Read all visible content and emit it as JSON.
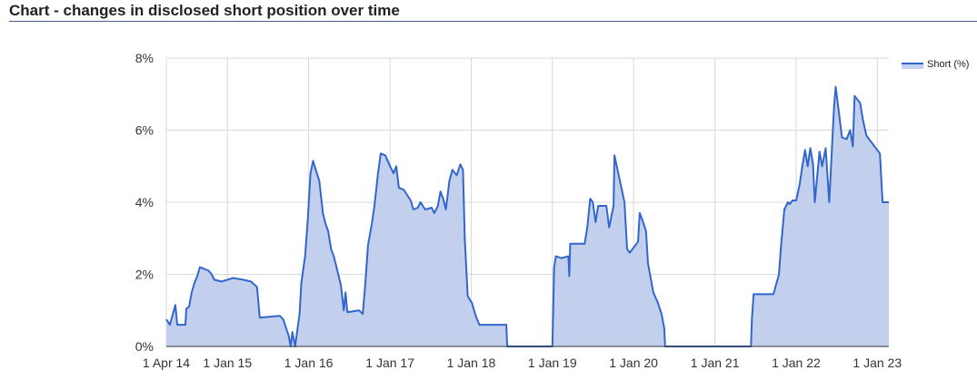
{
  "chart_data": {
    "type": "area",
    "title": "Chart - changes in disclosed short position over time",
    "x": [
      "2014-04-01",
      "2014-04-17",
      "2014-05-12",
      "2014-05-20",
      "2014-06-26",
      "2014-06-30",
      "2014-07-12",
      "2014-07-24",
      "2014-08-05",
      "2014-08-18",
      "2014-08-30",
      "2014-10-09",
      "2014-10-22",
      "2014-11-03",
      "2014-12-05",
      "2015-01-01",
      "2015-01-25",
      "2015-03-14",
      "2015-04-16",
      "2015-05-14",
      "2015-05-26",
      "2015-08-24",
      "2015-09-09",
      "2015-09-25",
      "2015-10-03",
      "2015-10-12",
      "2015-10-20",
      "2015-11-01",
      "2015-11-09",
      "2015-11-21",
      "2015-11-29",
      "2015-12-16",
      "2015-12-28",
      "2016-01-09",
      "2016-01-21",
      "2016-02-02",
      "2016-02-18",
      "2016-03-05",
      "2016-03-17",
      "2016-03-29",
      "2016-04-11",
      "2016-04-23",
      "2016-05-09",
      "2016-05-25",
      "2016-06-07",
      "2016-06-15",
      "2016-06-23",
      "2016-08-15",
      "2016-08-31",
      "2016-09-12",
      "2016-09-24",
      "2016-10-11",
      "2016-10-23",
      "2016-11-08",
      "2016-11-20",
      "2016-12-11",
      "2017-01-01",
      "2017-01-17",
      "2017-01-29",
      "2017-02-10",
      "2017-03-03",
      "2017-03-19",
      "2017-04-04",
      "2017-04-16",
      "2017-05-06",
      "2017-05-18",
      "2017-06-08",
      "2017-07-07",
      "2017-07-19",
      "2017-08-04",
      "2017-08-16",
      "2017-08-28",
      "2017-09-09",
      "2017-09-25",
      "2017-10-08",
      "2017-10-28",
      "2017-11-13",
      "2017-11-25",
      "2017-12-03",
      "2017-12-16",
      "2018-01-05",
      "2018-01-21",
      "2018-02-07",
      "2018-06-08",
      "2018-06-12",
      "2019-01-01",
      "2019-01-09",
      "2019-01-17",
      "2019-02-10",
      "2019-03-14",
      "2019-03-18",
      "2019-03-22",
      "2019-05-26",
      "2019-06-07",
      "2019-06-20",
      "2019-07-02",
      "2019-07-14",
      "2019-07-26",
      "2019-09-01",
      "2019-09-13",
      "2019-10-03",
      "2019-10-07",
      "2019-11-21",
      "2019-12-03",
      "2019-12-15",
      "2020-01-21",
      "2020-01-29",
      "2020-02-10",
      "2020-02-26",
      "2020-03-06",
      "2020-03-18",
      "2020-03-30",
      "2020-04-20",
      "2020-05-06",
      "2020-05-18",
      "2020-05-22",
      "2021-06-12",
      "2021-06-16",
      "2021-06-24",
      "2021-09-21",
      "2021-10-16",
      "2021-10-24",
      "2021-11-09",
      "2021-11-25",
      "2021-12-03",
      "2021-12-16",
      "2022-01-01",
      "2022-01-17",
      "2022-01-29",
      "2022-02-10",
      "2022-02-22",
      "2022-03-06",
      "2022-03-18",
      "2022-03-26",
      "2022-04-16",
      "2022-04-28",
      "2022-05-14",
      "2022-05-30",
      "2022-06-12",
      "2022-06-20",
      "2022-06-28",
      "2022-07-10",
      "2022-07-26",
      "2022-08-16",
      "2022-09-01",
      "2022-09-13",
      "2022-09-21",
      "2022-10-16",
      "2022-10-28",
      "2022-11-13",
      "2022-11-25",
      "2023-01-13",
      "2023-01-25",
      "2023-02-22"
    ],
    "series": [
      {
        "name": "Short (%)",
        "color": "#3366cc",
        "fill": "#c2d0ee",
        "values": [
          0.75,
          0.6,
          1.15,
          0.6,
          0.6,
          1.05,
          1.1,
          1.5,
          1.75,
          1.95,
          2.2,
          2.1,
          2.0,
          1.85,
          1.8,
          1.85,
          1.9,
          1.85,
          1.8,
          1.65,
          0.8,
          0.85,
          0.75,
          0.45,
          0.3,
          0.0,
          0.4,
          0.0,
          0.35,
          0.9,
          1.75,
          2.5,
          3.5,
          4.8,
          5.15,
          4.9,
          4.6,
          3.7,
          3.4,
          3.2,
          2.7,
          2.5,
          2.1,
          1.7,
          1.0,
          1.5,
          0.95,
          1.0,
          0.9,
          1.75,
          2.8,
          3.4,
          3.9,
          4.8,
          5.35,
          5.3,
          5.0,
          4.8,
          5.0,
          4.4,
          4.35,
          4.2,
          4.05,
          3.8,
          3.85,
          4.0,
          3.8,
          3.85,
          3.7,
          3.9,
          4.3,
          4.1,
          3.8,
          4.6,
          4.9,
          4.75,
          5.05,
          4.9,
          3.0,
          1.4,
          1.2,
          0.85,
          0.6,
          0.6,
          0.0,
          0.0,
          2.2,
          2.5,
          2.45,
          2.5,
          1.95,
          2.85,
          2.85,
          3.3,
          4.1,
          4.0,
          3.45,
          3.9,
          3.9,
          3.3,
          3.9,
          5.3,
          4.0,
          2.7,
          2.6,
          2.9,
          3.7,
          3.5,
          3.2,
          2.3,
          1.9,
          1.5,
          1.2,
          0.9,
          0.5,
          0.0,
          0.0,
          0.75,
          1.45,
          1.45,
          2.0,
          2.7,
          3.8,
          4.0,
          3.95,
          4.05,
          4.05,
          4.5,
          5.0,
          5.45,
          5.0,
          5.5,
          5.05,
          4.0,
          5.4,
          5.0,
          5.5,
          4.0,
          5.6,
          6.6,
          7.2,
          6.6,
          5.8,
          5.75,
          6.0,
          5.55,
          6.95,
          6.75,
          6.3,
          5.85,
          5.75,
          5.35,
          4.0,
          4.0
        ]
      }
    ],
    "xlim": [
      "2014-04-01",
      "2023-02-22"
    ],
    "xticks": [
      {
        "value": "2014-04-01",
        "label": "1 Apr 14"
      },
      {
        "value": "2015-01-01",
        "label": "1 Jan 15"
      },
      {
        "value": "2016-01-01",
        "label": "1 Jan 16"
      },
      {
        "value": "2017-01-01",
        "label": "1 Jan 17"
      },
      {
        "value": "2018-01-01",
        "label": "1 Jan 18"
      },
      {
        "value": "2019-01-01",
        "label": "1 Jan 19"
      },
      {
        "value": "2020-01-01",
        "label": "1 Jan 20"
      },
      {
        "value": "2021-01-01",
        "label": "1 Jan 21"
      },
      {
        "value": "2022-01-01",
        "label": "1 Jan 22"
      },
      {
        "value": "2023-01-01",
        "label": "1 Jan 23"
      }
    ],
    "ylim": [
      0,
      8
    ],
    "yticks": [
      {
        "value": 0,
        "label": "0%"
      },
      {
        "value": 2,
        "label": "2%"
      },
      {
        "value": 4,
        "label": "4%"
      },
      {
        "value": 6,
        "label": "6%"
      },
      {
        "value": 8,
        "label": "8%"
      }
    ],
    "grid": true,
    "legend": "right"
  }
}
